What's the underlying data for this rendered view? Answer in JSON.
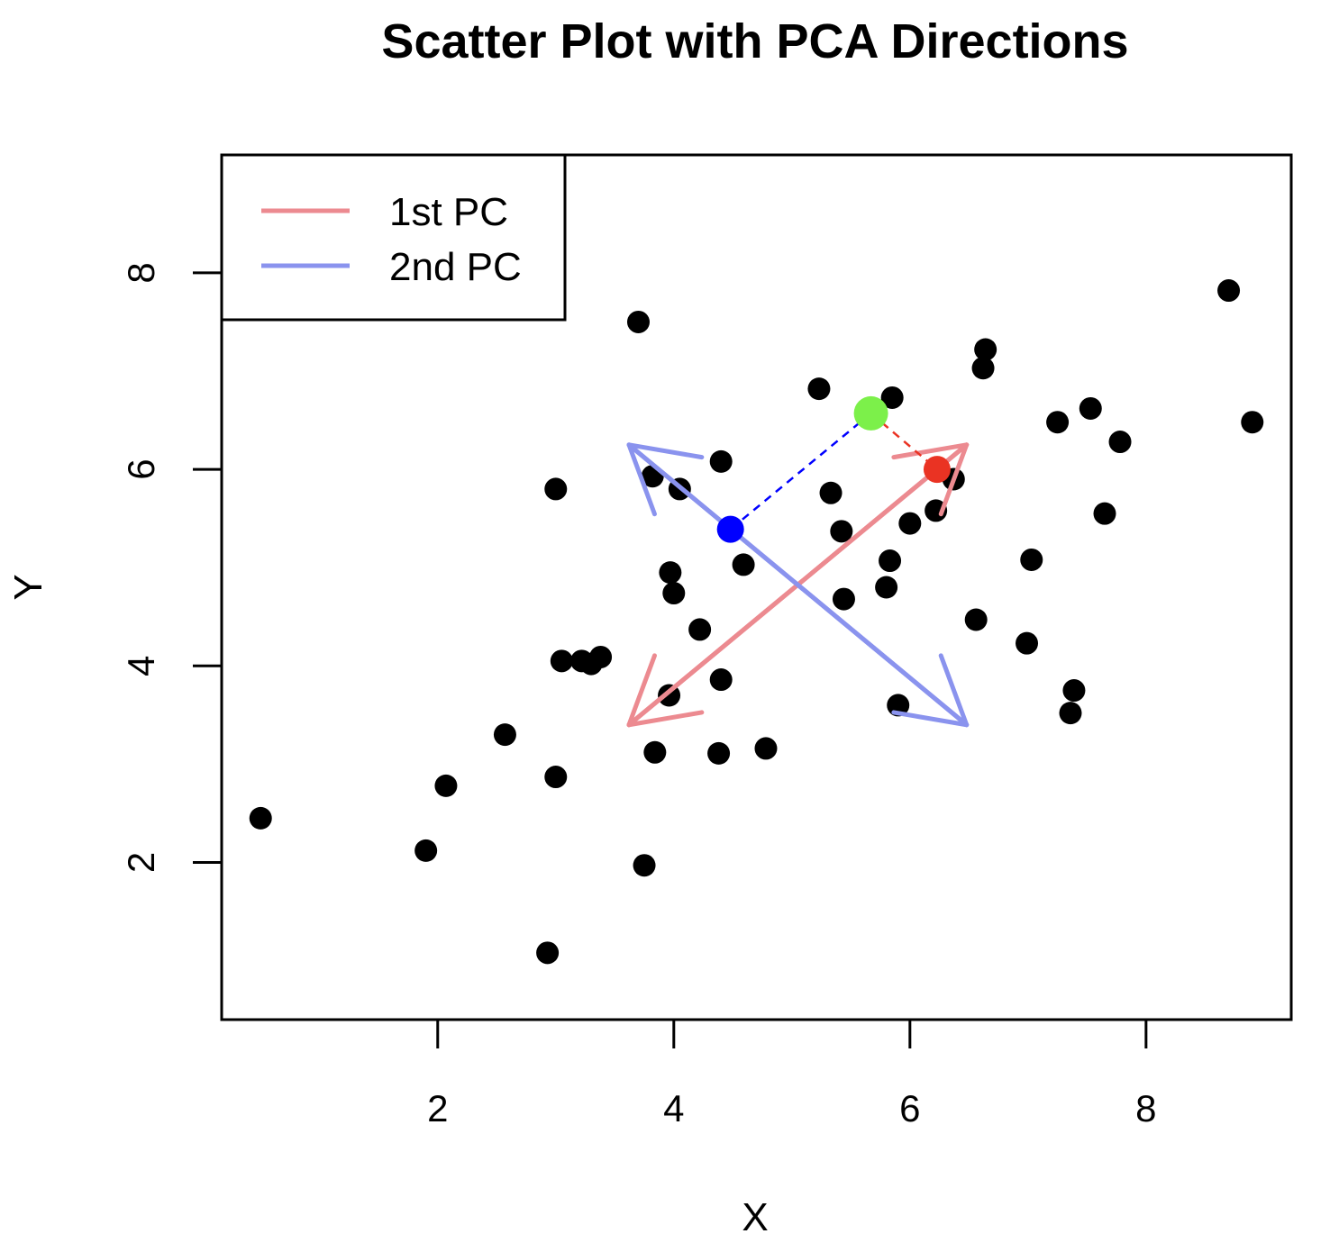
{
  "chart_data": {
    "type": "scatter",
    "title": "Scatter Plot with PCA Directions",
    "xlabel": "X",
    "ylabel": "Y",
    "xlim": [
      0.17,
      9.23
    ],
    "ylim": [
      0.4,
      9.2
    ],
    "xticks": [
      2,
      4,
      6,
      8
    ],
    "yticks": [
      2,
      4,
      6,
      8
    ],
    "grid": false,
    "legend_position": "top-left",
    "legend": [
      {
        "label": "1st PC",
        "color": "#ec8a90"
      },
      {
        "label": "2nd PC",
        "color": "#8a93ee"
      }
    ],
    "point_color": "#000000",
    "points": [
      {
        "x": 0.5,
        "y": 2.45
      },
      {
        "x": 1.9,
        "y": 2.12
      },
      {
        "x": 2.07,
        "y": 2.78
      },
      {
        "x": 2.57,
        "y": 3.3
      },
      {
        "x": 2.93,
        "y": 1.08
      },
      {
        "x": 3.0,
        "y": 2.87
      },
      {
        "x": 3.0,
        "y": 5.8
      },
      {
        "x": 3.05,
        "y": 4.05
      },
      {
        "x": 3.22,
        "y": 4.05
      },
      {
        "x": 3.3,
        "y": 4.02
      },
      {
        "x": 3.38,
        "y": 4.09
      },
      {
        "x": 3.7,
        "y": 7.5
      },
      {
        "x": 3.75,
        "y": 1.97
      },
      {
        "x": 3.82,
        "y": 5.93
      },
      {
        "x": 3.84,
        "y": 3.12
      },
      {
        "x": 3.96,
        "y": 3.7
      },
      {
        "x": 3.97,
        "y": 4.95
      },
      {
        "x": 4.0,
        "y": 4.74
      },
      {
        "x": 4.05,
        "y": 5.8
      },
      {
        "x": 4.22,
        "y": 4.37
      },
      {
        "x": 4.38,
        "y": 3.11
      },
      {
        "x": 4.4,
        "y": 3.86
      },
      {
        "x": 4.4,
        "y": 6.08
      },
      {
        "x": 4.59,
        "y": 5.03
      },
      {
        "x": 4.78,
        "y": 3.16
      },
      {
        "x": 5.23,
        "y": 6.82
      },
      {
        "x": 5.33,
        "y": 5.76
      },
      {
        "x": 5.42,
        "y": 5.37
      },
      {
        "x": 5.44,
        "y": 4.68
      },
      {
        "x": 5.8,
        "y": 4.8
      },
      {
        "x": 5.83,
        "y": 5.07
      },
      {
        "x": 5.85,
        "y": 6.73
      },
      {
        "x": 5.9,
        "y": 3.6
      },
      {
        "x": 6.0,
        "y": 5.45
      },
      {
        "x": 6.22,
        "y": 5.58
      },
      {
        "x": 6.37,
        "y": 5.9
      },
      {
        "x": 6.56,
        "y": 4.47
      },
      {
        "x": 6.62,
        "y": 7.03
      },
      {
        "x": 6.64,
        "y": 7.22
      },
      {
        "x": 6.99,
        "y": 4.23
      },
      {
        "x": 7.03,
        "y": 5.08
      },
      {
        "x": 7.25,
        "y": 6.48
      },
      {
        "x": 7.36,
        "y": 3.52
      },
      {
        "x": 7.39,
        "y": 3.75
      },
      {
        "x": 7.53,
        "y": 6.62
      },
      {
        "x": 7.65,
        "y": 5.55
      },
      {
        "x": 7.78,
        "y": 6.28
      },
      {
        "x": 8.7,
        "y": 7.82
      },
      {
        "x": 8.9,
        "y": 6.48
      }
    ],
    "pc_arrows": [
      {
        "name": "1st PC",
        "color": "#ec8a90",
        "from": [
          3.62,
          3.4
        ],
        "to": [
          6.48,
          6.25
        ]
      },
      {
        "name": "1st PC",
        "color": "#ec8a90",
        "from": [
          6.48,
          6.25
        ],
        "to": [
          3.62,
          3.4
        ]
      },
      {
        "name": "2nd PC",
        "color": "#8a93ee",
        "from": [
          3.62,
          6.25
        ],
        "to": [
          6.48,
          3.4
        ]
      },
      {
        "name": "2nd PC",
        "color": "#8a93ee",
        "from": [
          6.48,
          3.4
        ],
        "to": [
          3.62,
          6.25
        ]
      }
    ],
    "highlight_points": [
      {
        "x": 5.67,
        "y": 6.57,
        "color": "#7cf04a",
        "role": "selected point"
      },
      {
        "x": 6.23,
        "y": 6.0,
        "color": "#ea3323",
        "role": "projection on 1st PC"
      },
      {
        "x": 4.48,
        "y": 5.39,
        "color": "#0000ff",
        "role": "projection on 2nd PC"
      }
    ],
    "projection_lines": [
      {
        "from": [
          5.67,
          6.57
        ],
        "to": [
          6.23,
          6.0
        ],
        "color": "#ea3323"
      },
      {
        "from": [
          5.67,
          6.57
        ],
        "to": [
          4.48,
          5.39
        ],
        "color": "#0000ff"
      }
    ]
  }
}
